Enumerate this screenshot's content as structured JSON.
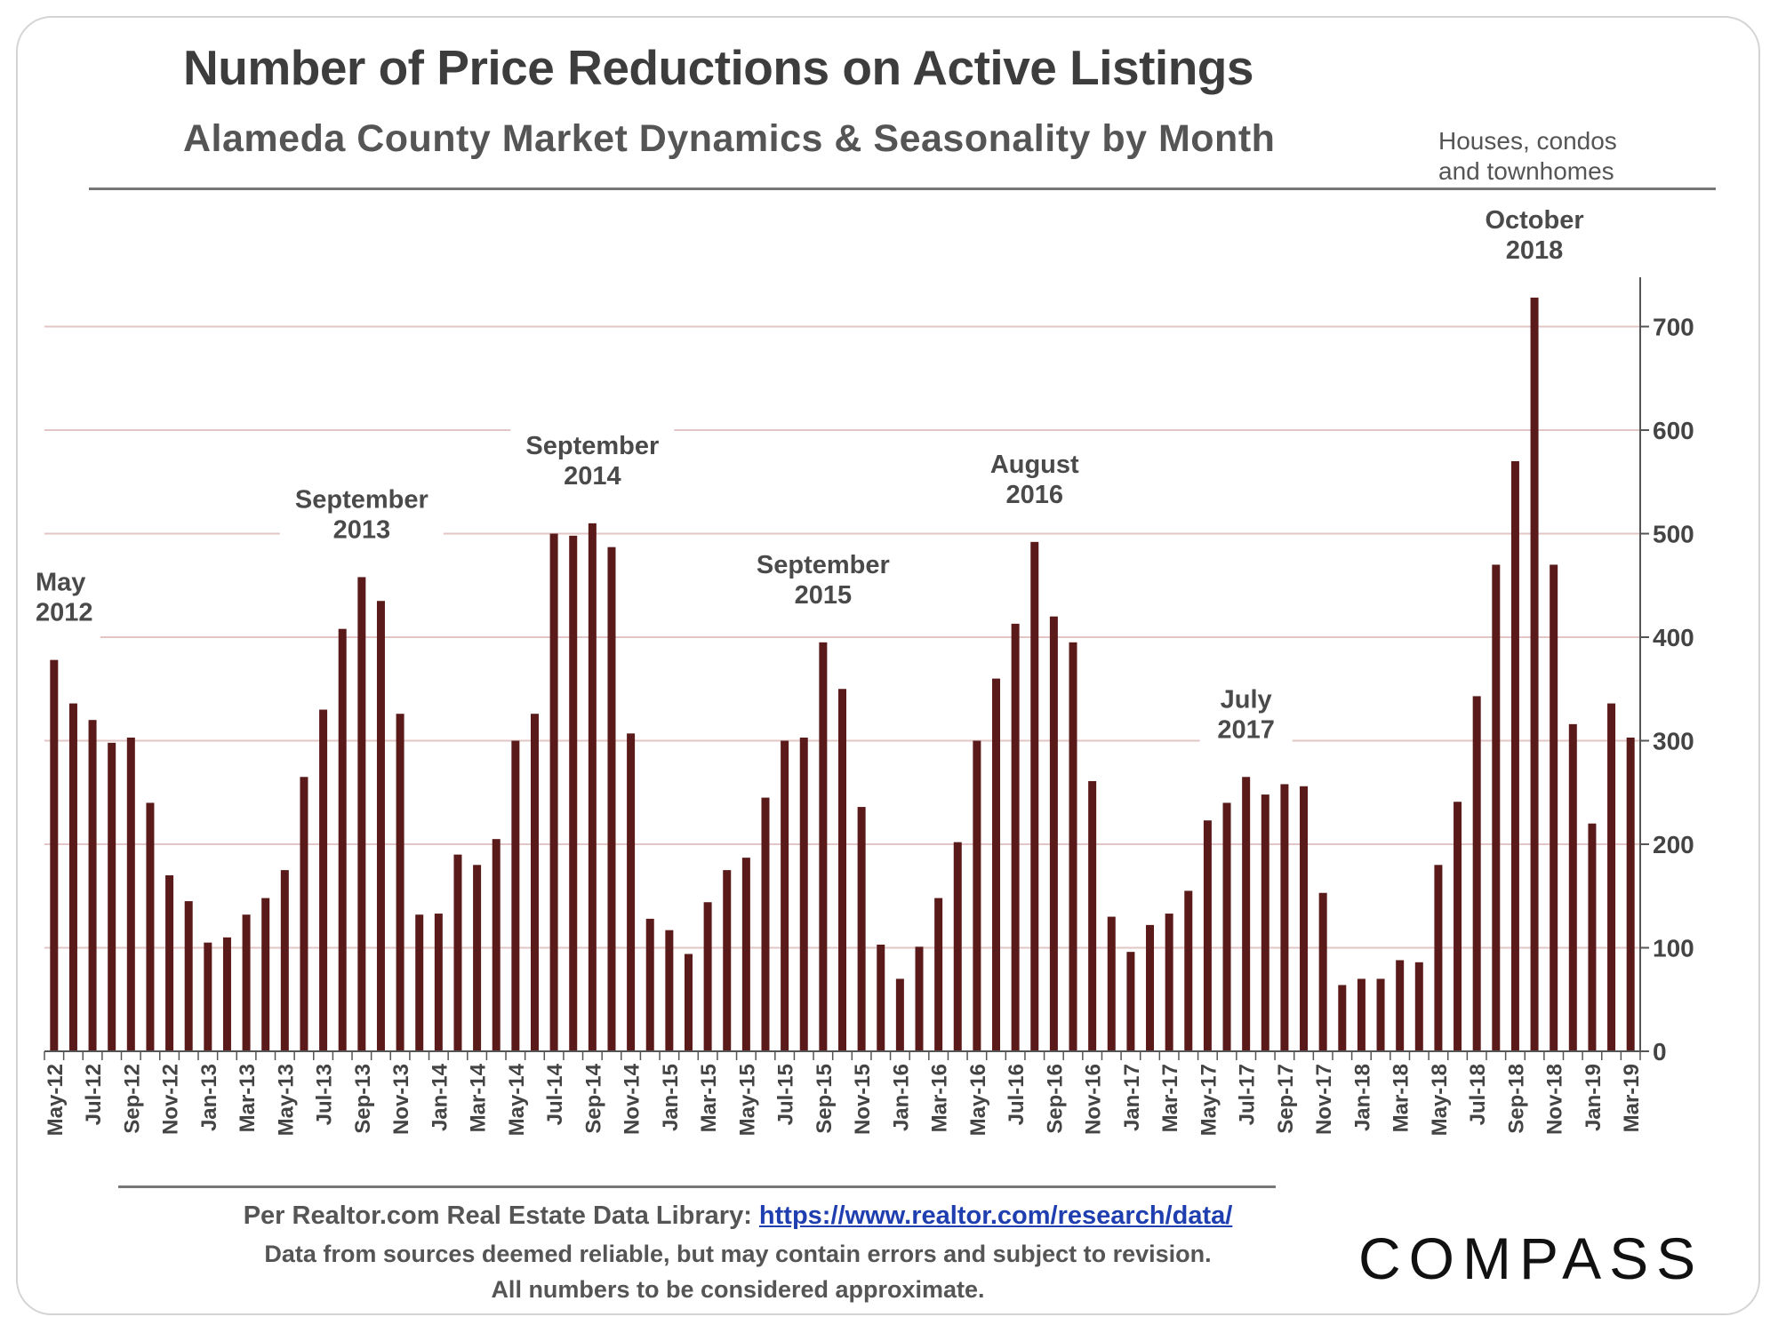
{
  "header": {
    "title": "Number of Price Reductions on Active Listings",
    "subtitle": "Alameda County Market Dynamics & Seasonality by Month",
    "note_line1": "Houses, condos",
    "note_line2": "and townhomes"
  },
  "footer": {
    "source_prefix": "Per Realtor.com Real Estate  Data Library: ",
    "source_link": "https://www.realtor.com/research/data/",
    "disclaimer": "Data from sources  deemed reliable, but may contain errors and subject to revision.",
    "approx": "All numbers to be considered approximate."
  },
  "logo": {
    "text": "COMPASS"
  },
  "colors": {
    "bar": "#5a1a1a",
    "grid": "#e3c5c5",
    "text": "#3a3a3a"
  },
  "chart_data": {
    "type": "bar",
    "title": "Number of Price Reductions on Active Listings",
    "subtitle": "Alameda County Market Dynamics & Seasonality by Month",
    "ylim": [
      0,
      750
    ],
    "yticks": [
      0,
      100,
      200,
      300,
      400,
      500,
      600,
      700
    ],
    "y_axis_side": "right",
    "grid": true,
    "categories": [
      "May-12",
      "Jun-12",
      "Jul-12",
      "Aug-12",
      "Sep-12",
      "Oct-12",
      "Nov-12",
      "Dec-12",
      "Jan-13",
      "Feb-13",
      "Mar-13",
      "Apr-13",
      "May-13",
      "Jun-13",
      "Jul-13",
      "Aug-13",
      "Sep-13",
      "Oct-13",
      "Nov-13",
      "Dec-13",
      "Jan-14",
      "Feb-14",
      "Mar-14",
      "Apr-14",
      "May-14",
      "Jun-14",
      "Jul-14",
      "Aug-14",
      "Sep-14",
      "Oct-14",
      "Nov-14",
      "Dec-14",
      "Jan-15",
      "Feb-15",
      "Mar-15",
      "Apr-15",
      "May-15",
      "Jun-15",
      "Jul-15",
      "Aug-15",
      "Sep-15",
      "Oct-15",
      "Nov-15",
      "Dec-15",
      "Jan-16",
      "Feb-16",
      "Mar-16",
      "Apr-16",
      "May-16",
      "Jun-16",
      "Jul-16",
      "Aug-16",
      "Sep-16",
      "Oct-16",
      "Nov-16",
      "Dec-16",
      "Jan-17",
      "Feb-17",
      "Mar-17",
      "Apr-17",
      "May-17",
      "Jun-17",
      "Jul-17",
      "Aug-17",
      "Sep-17",
      "Oct-17",
      "Nov-17",
      "Dec-17",
      "Jan-18",
      "Feb-18",
      "Mar-18",
      "Apr-18",
      "May-18",
      "Jun-18",
      "Jul-18",
      "Aug-18",
      "Sep-18",
      "Oct-18",
      "Nov-18",
      "Dec-18",
      "Jan-19",
      "Feb-19",
      "Mar-19"
    ],
    "tick_labels_shown": [
      "May-12",
      "Jul-12",
      "Sep-12",
      "Nov-12",
      "Jan-13",
      "Mar-13",
      "May-13",
      "Jul-13",
      "Sep-13",
      "Nov-13",
      "Jan-14",
      "Mar-14",
      "May-14",
      "Jul-14",
      "Sep-14",
      "Nov-14",
      "Jan-15",
      "Mar-15",
      "May-15",
      "Jul-15",
      "Sep-15",
      "Nov-15",
      "Jan-16",
      "Mar-16",
      "May-16",
      "Jul-16",
      "Sep-16",
      "Nov-16",
      "Jan-17",
      "Mar-17",
      "May-17",
      "Jul-17",
      "Sep-17",
      "Nov-17",
      "Jan-18",
      "Mar-18",
      "May-18",
      "Jul-18",
      "Sep-18",
      "Nov-18",
      "Jan-19",
      "Mar-19"
    ],
    "values": [
      378,
      336,
      320,
      298,
      303,
      240,
      170,
      145,
      105,
      110,
      132,
      148,
      175,
      265,
      330,
      408,
      458,
      435,
      326,
      132,
      133,
      190,
      180,
      205,
      300,
      326,
      500,
      498,
      510,
      487,
      307,
      128,
      117,
      94,
      144,
      175,
      187,
      245,
      300,
      303,
      395,
      350,
      236,
      103,
      70,
      101,
      148,
      202,
      300,
      360,
      413,
      492,
      420,
      395,
      261,
      130,
      96,
      122,
      133,
      155,
      223,
      240,
      265,
      248,
      258,
      256,
      153,
      64,
      70,
      70,
      88,
      86,
      180,
      241,
      343,
      470,
      570,
      728,
      470,
      316,
      220,
      336,
      303
    ],
    "annotations": [
      {
        "category": "May-12",
        "line1": "May",
        "line2": "2012"
      },
      {
        "category": "Sep-13",
        "line1": "September",
        "line2": "2013"
      },
      {
        "category": "Sep-14",
        "line1": "September",
        "line2": "2014"
      },
      {
        "category": "Sep-15",
        "line1": "September",
        "line2": "2015"
      },
      {
        "category": "Aug-16",
        "line1": "August",
        "line2": "2016"
      },
      {
        "category": "Jul-17",
        "line1": "July",
        "line2": "2017"
      },
      {
        "category": "Oct-18",
        "line1": "October",
        "line2": "2018"
      }
    ]
  }
}
